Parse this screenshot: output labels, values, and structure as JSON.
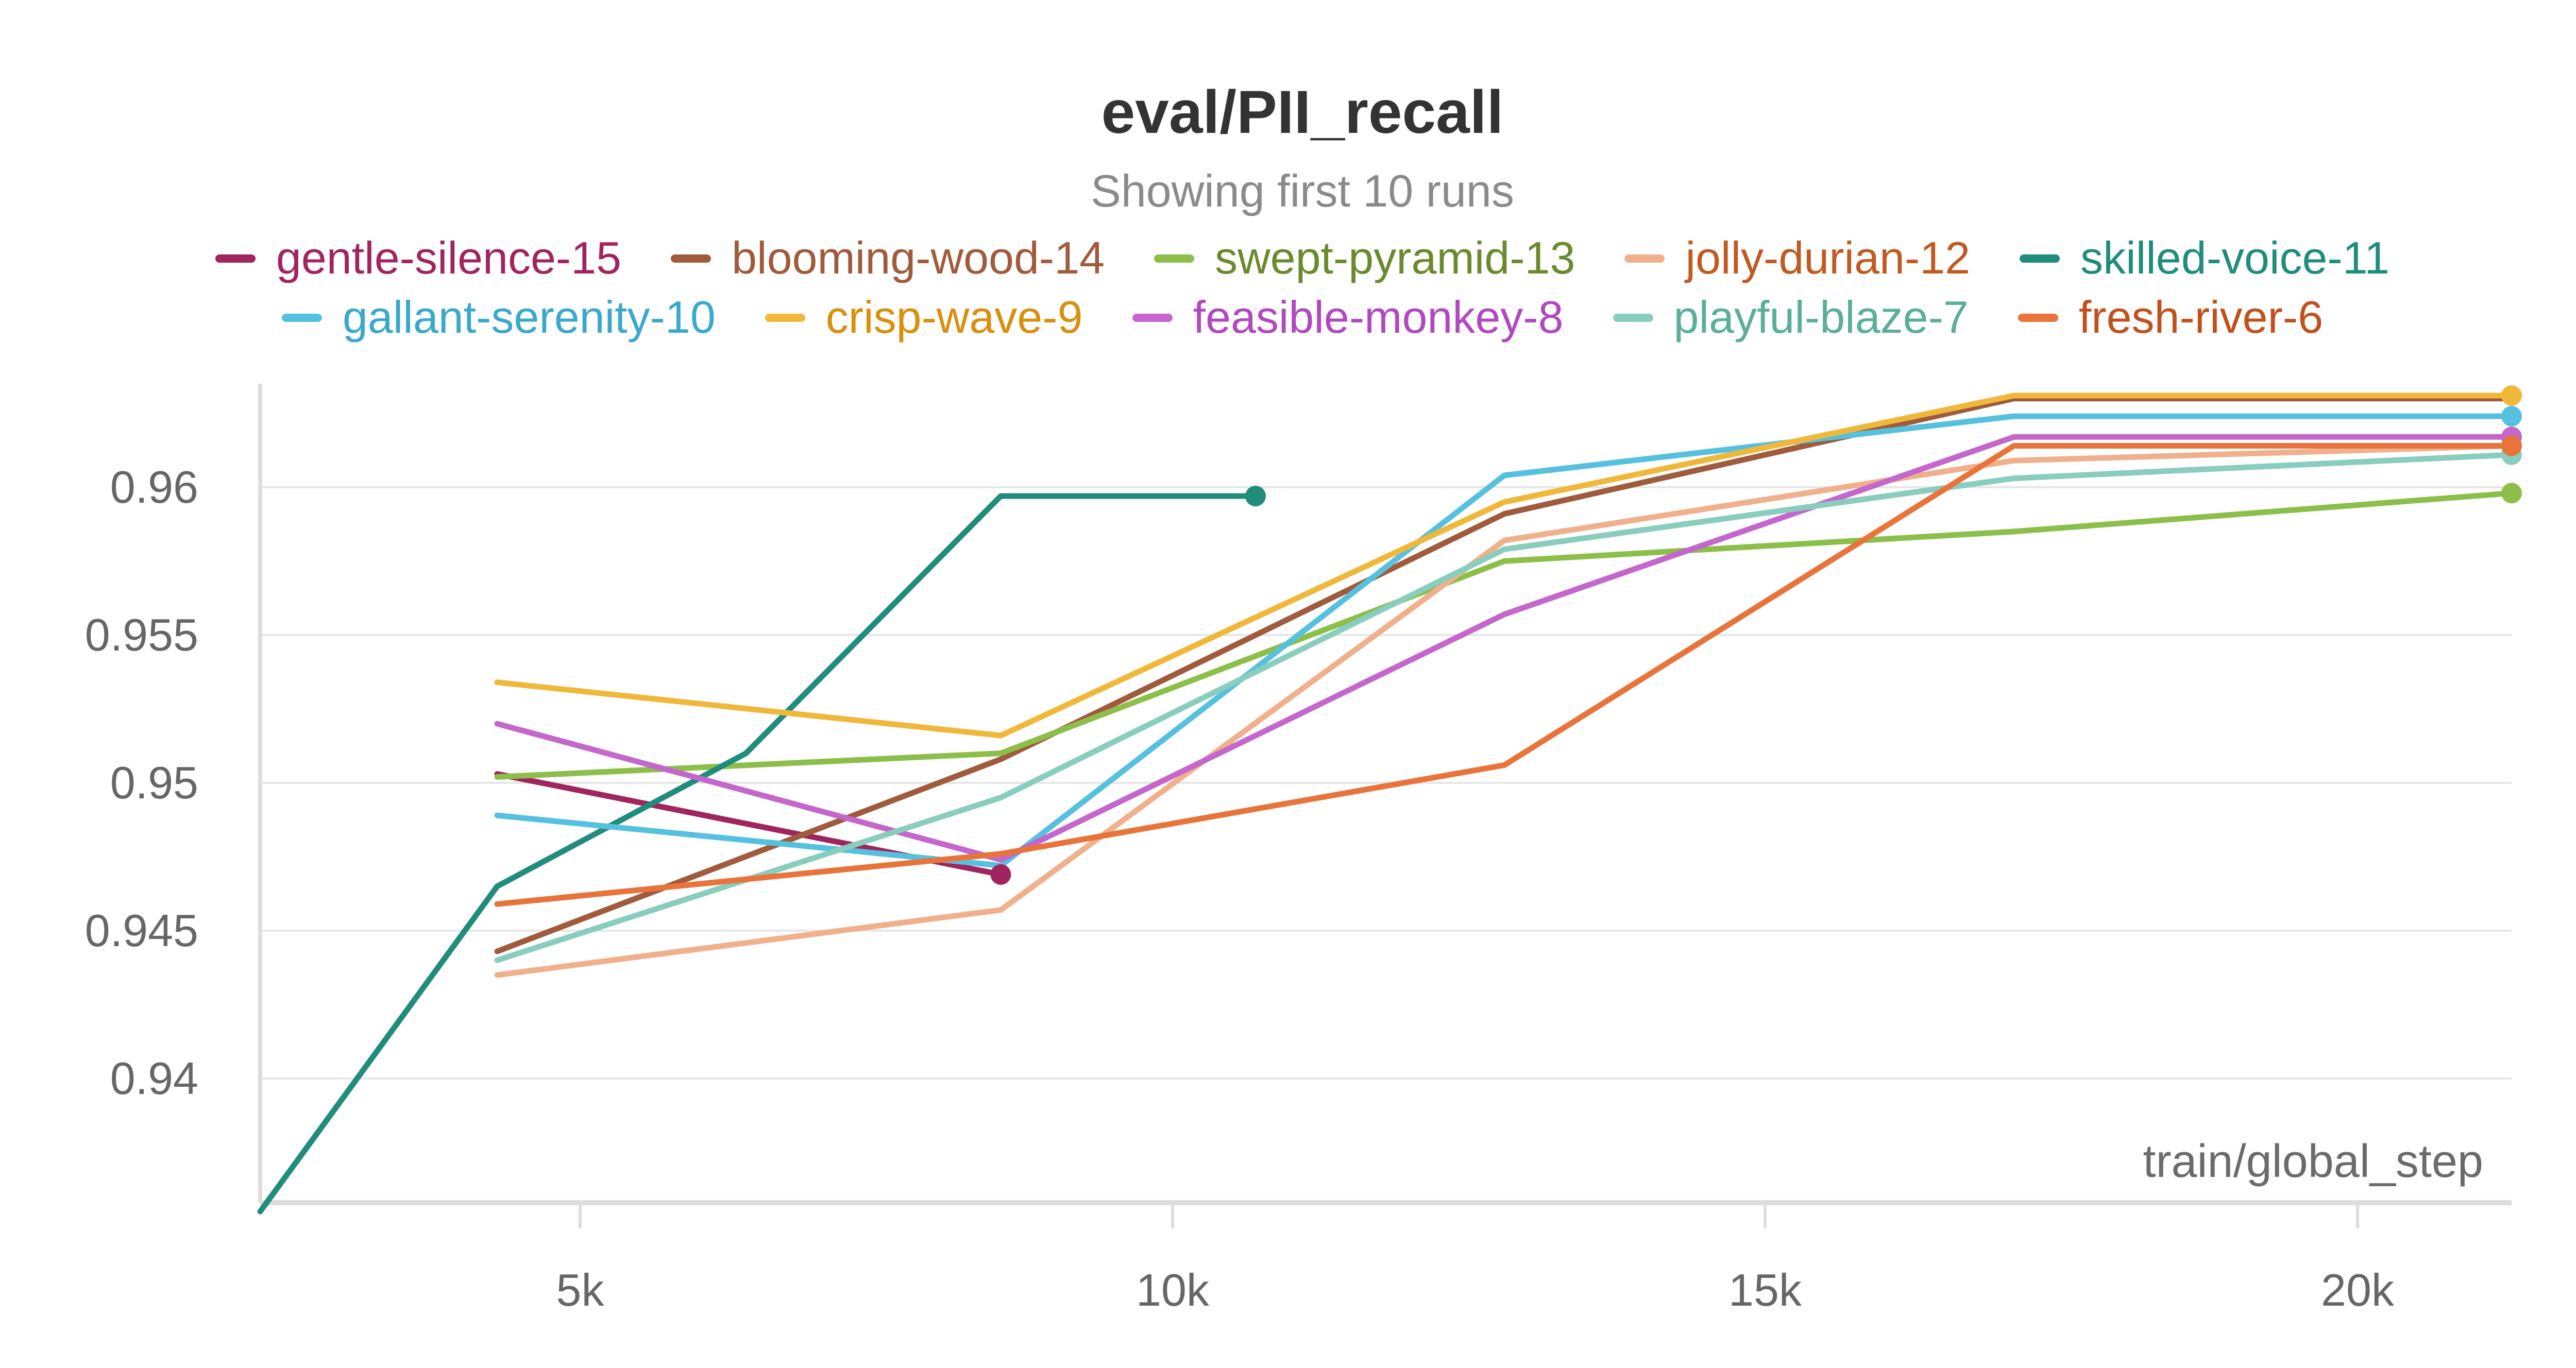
{
  "chart_data": {
    "type": "line",
    "title": "eval/PII_recall",
    "subtitle": "Showing first 10 runs",
    "xlabel": "train/global_step",
    "ylabel": "",
    "xlim": [
      2300,
      21300
    ],
    "ylim": [
      0.9358,
      0.9635
    ],
    "x_ticks": [
      5000,
      10000,
      15000,
      20000
    ],
    "x_tick_labels": [
      "5k",
      "10k",
      "15k",
      "20k"
    ],
    "y_ticks": [
      0.94,
      0.945,
      0.95,
      0.955,
      0.96
    ],
    "y_tick_labels": [
      "0.94",
      "0.945",
      "0.95",
      "0.955",
      "0.96"
    ],
    "grid": true,
    "legend_position": "top",
    "series": [
      {
        "name": "gentle-silence-15",
        "color": "#a0245e",
        "end_marker": true,
        "x": [
          4300,
          8550
        ],
        "y": [
          0.9503,
          0.9469
        ]
      },
      {
        "name": "blooming-wood-14",
        "color": "#a05a3c",
        "end_marker": false,
        "x": [
          4300,
          8550,
          12800,
          17100,
          21300
        ],
        "y": [
          0.9443,
          0.9508,
          0.9591,
          0.963,
          0.963
        ]
      },
      {
        "name": "swept-pyramid-13",
        "color": "#8cbf4a",
        "end_marker": true,
        "x": [
          4300,
          8550,
          12800,
          17100,
          21300
        ],
        "y": [
          0.9502,
          0.951,
          0.9575,
          0.9585,
          0.9598
        ]
      },
      {
        "name": "jolly-durian-12",
        "color": "#f0b08c",
        "end_marker": false,
        "x": [
          4300,
          8550,
          12800,
          17100,
          21300
        ],
        "y": [
          0.9435,
          0.9457,
          0.9582,
          0.9609,
          0.9614
        ]
      },
      {
        "name": "skilled-voice-11",
        "color": "#1f8c7c",
        "end_marker": true,
        "x": [
          2300,
          4300,
          6400,
          8550,
          10700
        ],
        "y": [
          0.9355,
          0.9465,
          0.951,
          0.9597,
          0.9597
        ]
      },
      {
        "name": "gallant-serenity-10",
        "color": "#56c1df",
        "end_marker": true,
        "x": [
          4300,
          8550,
          12800,
          17100,
          21300
        ],
        "y": [
          0.9489,
          0.9472,
          0.9604,
          0.9624,
          0.9624
        ]
      },
      {
        "name": "crisp-wave-9",
        "color": "#f0b83a",
        "end_marker": true,
        "x": [
          4300,
          8550,
          12800,
          17100,
          21300
        ],
        "y": [
          0.9534,
          0.9516,
          0.9595,
          0.9631,
          0.9631
        ]
      },
      {
        "name": "feasible-monkey-8",
        "color": "#c466cc",
        "end_marker": true,
        "x": [
          4300,
          8550,
          12800,
          17100,
          21300
        ],
        "y": [
          0.952,
          0.9474,
          0.9557,
          0.9617,
          0.9617
        ]
      },
      {
        "name": "playful-blaze-7",
        "color": "#88cdbd",
        "end_marker": true,
        "x": [
          4300,
          8550,
          12800,
          17100,
          21300
        ],
        "y": [
          0.944,
          0.9495,
          0.9579,
          0.9603,
          0.9611
        ]
      },
      {
        "name": "fresh-river-6",
        "color": "#e8743b",
        "end_marker": true,
        "x": [
          4300,
          8550,
          12800,
          17100,
          21300
        ],
        "y": [
          0.9459,
          0.9476,
          0.9506,
          0.9614,
          0.9614
        ]
      }
    ]
  },
  "legend_colors": {
    "gentle-silence-15": "#a0245e",
    "blooming-wood-14": "#a05a3c",
    "swept-pyramid-13": "#6a8a2c",
    "jolly-durian-12": "#c05a20",
    "skilled-voice-11": "#1f8c7c",
    "gallant-serenity-10": "#3aa8cc",
    "crisp-wave-9": "#d98f0c",
    "feasible-monkey-8": "#b048c0",
    "playful-blaze-7": "#5aae9a",
    "fresh-river-6": "#c0501c"
  }
}
